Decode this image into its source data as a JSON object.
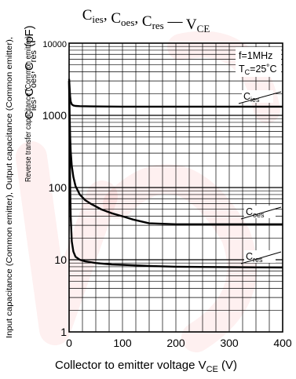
{
  "chart_data": {
    "type": "line",
    "title": {
      "parts": [
        {
          "base": "C",
          "sub": "ies",
          "sep": ", "
        },
        {
          "base": "C",
          "sub": "oes",
          "sep": ", "
        },
        {
          "base": "C",
          "sub": "res",
          "sep": " — "
        },
        {
          "base": "V",
          "sub": "CE",
          "sep": ""
        }
      ]
    },
    "xlabel": "Collector to emitter voltage",
    "xlabel_symbol": {
      "base": "V",
      "sub": "CE"
    },
    "xunit": "(V)",
    "ylabel_line1": "Input capacitance (Common emitter), Output capacitance (Common emitter),",
    "ylabel_line2": "Reverse transfer capacitance (Common emitter)",
    "ylabel_symbols": [
      {
        "base": "C",
        "sub": "ies"
      },
      {
        "base": "C",
        "sub": "oes"
      },
      {
        "base": "C",
        "sub": "res"
      }
    ],
    "yunit": "(pF)",
    "xlim": [
      0,
      400
    ],
    "ylim": [
      1,
      10000
    ],
    "yscale": "log",
    "grid": true,
    "x_ticks": [
      0,
      100,
      200,
      300,
      400
    ],
    "y_ticks": [
      1,
      10,
      100,
      1000,
      10000
    ],
    "conditions": {
      "freq": "f=1MHz",
      "temp": {
        "base": "T",
        "sub": "C",
        "rest": "=25˚C"
      }
    },
    "series": [
      {
        "name": {
          "base": "C",
          "sub": "ies"
        },
        "x": [
          0,
          1,
          2,
          3,
          5,
          8,
          12,
          20,
          40,
          100,
          200,
          300,
          400
        ],
        "y": [
          3200,
          2400,
          1800,
          1550,
          1420,
          1370,
          1350,
          1340,
          1330,
          1320,
          1320,
          1320,
          1320
        ]
      },
      {
        "name": {
          "base": "C",
          "sub": "oes"
        },
        "x": [
          0,
          1,
          2,
          3,
          5,
          8,
          12,
          20,
          30,
          40,
          60,
          80,
          100,
          120,
          150,
          200,
          300,
          400
        ],
        "y": [
          3000,
          1000,
          500,
          320,
          200,
          140,
          105,
          80,
          67,
          60,
          50,
          44,
          40,
          36,
          32,
          31,
          31,
          31
        ]
      },
      {
        "name": {
          "base": "C",
          "sub": "res"
        },
        "x": [
          0,
          1,
          2,
          3,
          5,
          8,
          12,
          20,
          30,
          50,
          80,
          100,
          150,
          200,
          300,
          400
        ],
        "y": [
          3000,
          500,
          100,
          40,
          18,
          13,
          11,
          10,
          9.5,
          9,
          8.6,
          8.5,
          8.2,
          8.0,
          7.9,
          7.8
        ]
      }
    ]
  },
  "colors": {
    "line": "#000000",
    "grid": "#000000",
    "text": "#111111",
    "watermark": "#ee0000"
  }
}
